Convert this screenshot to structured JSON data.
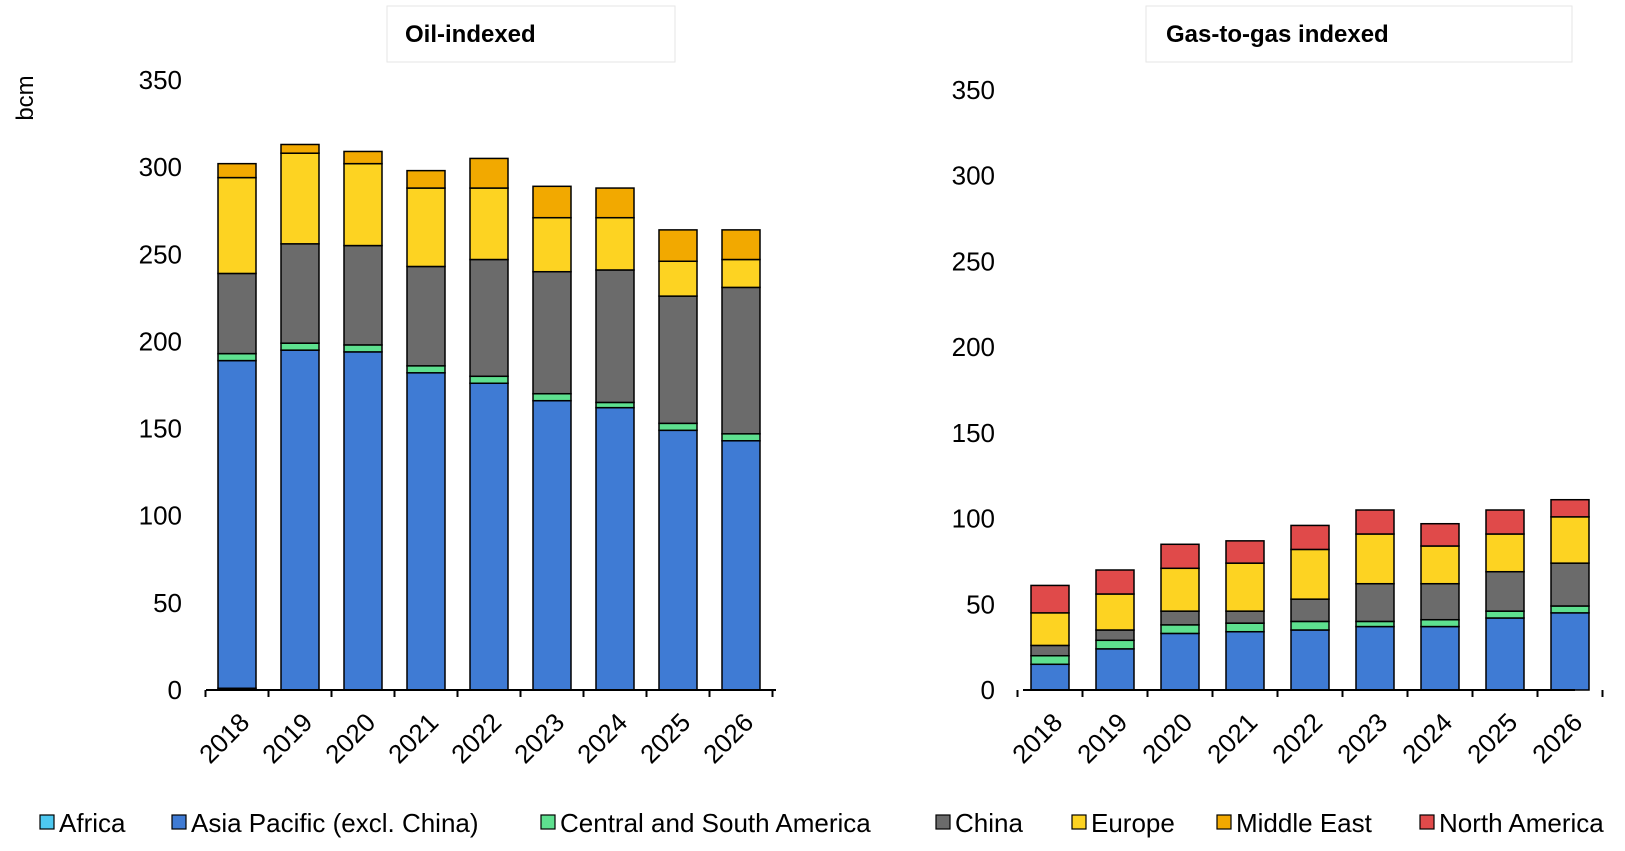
{
  "chart_data": [
    {
      "type": "bar",
      "stacked": true,
      "title": "Oil-indexed",
      "ylabel": "bcm",
      "xlabel": "",
      "ylim": [
        0,
        350
      ],
      "yticks": [
        0,
        50,
        100,
        150,
        200,
        250,
        300,
        350
      ],
      "categories": [
        "2018",
        "2019",
        "2020",
        "2021",
        "2022",
        "2023",
        "2024",
        "2025",
        "2026"
      ],
      "series": [
        {
          "name": "Africa",
          "color": "#4dc8f0",
          "values": [
            1,
            0,
            0,
            0,
            0,
            0,
            0,
            0,
            0
          ]
        },
        {
          "name": "Asia Pacific (excl. China)",
          "color": "#3f7bd4",
          "values": [
            188,
            195,
            194,
            182,
            176,
            166,
            162,
            149,
            143
          ]
        },
        {
          "name": "Central and South America",
          "color": "#5ee08f",
          "values": [
            4,
            4,
            4,
            4,
            4,
            4,
            3,
            4,
            4
          ]
        },
        {
          "name": "China",
          "color": "#6b6b6b",
          "values": [
            46,
            57,
            57,
            57,
            67,
            70,
            76,
            73,
            84
          ]
        },
        {
          "name": "Europe",
          "color": "#fdd322",
          "values": [
            55,
            52,
            47,
            45,
            41,
            31,
            30,
            20,
            16
          ]
        },
        {
          "name": "Middle East",
          "color": "#f2a900",
          "values": [
            8,
            5,
            7,
            10,
            17,
            18,
            17,
            18,
            17
          ]
        },
        {
          "name": "North America",
          "color": "#e04a4a",
          "values": [
            0,
            0,
            0,
            0,
            0,
            0,
            0,
            0,
            0
          ]
        }
      ]
    },
    {
      "type": "bar",
      "stacked": true,
      "title": "Gas-to-gas indexed",
      "ylabel": "",
      "xlabel": "",
      "ylim": [
        0,
        350
      ],
      "yticks": [
        0,
        50,
        100,
        150,
        200,
        250,
        300,
        350
      ],
      "categories": [
        "2018",
        "2019",
        "2020",
        "2021",
        "2022",
        "2023",
        "2024",
        "2025",
        "2026"
      ],
      "series": [
        {
          "name": "Africa",
          "color": "#4dc8f0",
          "values": [
            0,
            0,
            0,
            0,
            0,
            0,
            0,
            0,
            0
          ]
        },
        {
          "name": "Asia Pacific (excl. China)",
          "color": "#3f7bd4",
          "values": [
            15,
            24,
            33,
            34,
            35,
            37,
            37,
            42,
            45
          ]
        },
        {
          "name": "Central and South America",
          "color": "#5ee08f",
          "values": [
            5,
            5,
            5,
            5,
            5,
            3,
            4,
            4,
            4
          ]
        },
        {
          "name": "China",
          "color": "#6b6b6b",
          "values": [
            6,
            6,
            8,
            7,
            13,
            22,
            21,
            23,
            25
          ]
        },
        {
          "name": "Europe",
          "color": "#fdd322",
          "values": [
            19,
            21,
            25,
            28,
            29,
            29,
            22,
            22,
            27
          ]
        },
        {
          "name": "Middle East",
          "color": "#f2a900",
          "values": [
            0,
            0,
            0,
            0,
            0,
            0,
            0,
            0,
            0
          ]
        },
        {
          "name": "North America",
          "color": "#e04a4a",
          "values": [
            16,
            14,
            14,
            13,
            14,
            14,
            13,
            14,
            10
          ]
        }
      ]
    }
  ],
  "legend": [
    {
      "label": "Africa",
      "color": "#4dc8f0"
    },
    {
      "label": "Asia Pacific (excl. China)",
      "color": "#3f7bd4"
    },
    {
      "label": "Central and South America",
      "color": "#5ee08f"
    },
    {
      "label": "China",
      "color": "#6b6b6b"
    },
    {
      "label": "Europe",
      "color": "#fdd322"
    },
    {
      "label": "Middle East",
      "color": "#f2a900"
    },
    {
      "label": "North America",
      "color": "#e04a4a"
    }
  ]
}
